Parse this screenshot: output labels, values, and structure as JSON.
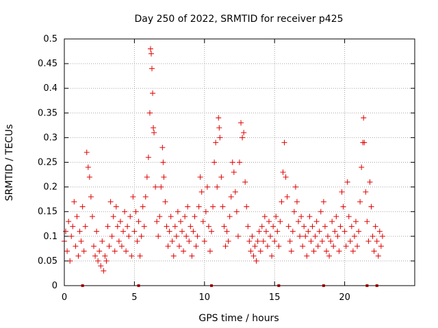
{
  "chart_data": {
    "type": "scatter",
    "title": "Day 250 of 2022, SRMTID for receiver p425",
    "xlabel": "GPS time / hours",
    "ylabel": "SRMTID / TECUs",
    "xlim": [
      0,
      25
    ],
    "ylim": [
      0,
      0.5
    ],
    "grid": true,
    "marker": "+",
    "color": "#e00000",
    "x_ticks": [
      {
        "value": 0,
        "label": "0"
      },
      {
        "value": 5,
        "label": "5"
      },
      {
        "value": 10,
        "label": "10"
      },
      {
        "value": 15,
        "label": "15"
      },
      {
        "value": 20,
        "label": "20"
      }
    ],
    "y_ticks": [
      {
        "value": 0,
        "label": "0"
      },
      {
        "value": 0.05,
        "label": "0.05"
      },
      {
        "value": 0.1,
        "label": "0.1"
      },
      {
        "value": 0.15,
        "label": "0.15"
      },
      {
        "value": 0.2,
        "label": "0.2"
      },
      {
        "value": 0.25,
        "label": "0.25"
      },
      {
        "value": 0.3,
        "label": "0.3"
      },
      {
        "value": 0.35,
        "label": "0.35"
      },
      {
        "value": 0.4,
        "label": "0.4"
      },
      {
        "value": 0.45,
        "label": "0.45"
      },
      {
        "value": 0.5,
        "label": "0.5"
      }
    ],
    "series": [
      {
        "name": "SRMTID",
        "points": [
          [
            0.0,
            0.09
          ],
          [
            0.1,
            0.11
          ],
          [
            0.2,
            0.07
          ],
          [
            0.3,
            0.13
          ],
          [
            0.4,
            0.05
          ],
          [
            0.5,
            0.1
          ],
          [
            0.6,
            0.12
          ],
          [
            0.7,
            0.17
          ],
          [
            0.8,
            0.08
          ],
          [
            0.9,
            0.14
          ],
          [
            1.0,
            0.06
          ],
          [
            1.1,
            0.11
          ],
          [
            1.2,
            0.09
          ],
          [
            1.3,
            0.16
          ],
          [
            1.4,
            0.07
          ],
          [
            1.5,
            0.12
          ],
          [
            1.6,
            0.27
          ],
          [
            1.7,
            0.24
          ],
          [
            1.8,
            0.22
          ],
          [
            1.9,
            0.18
          ],
          [
            2.0,
            0.14
          ],
          [
            2.1,
            0.08
          ],
          [
            2.2,
            0.06
          ],
          [
            2.3,
            0.11
          ],
          [
            2.4,
            0.05
          ],
          [
            2.5,
            0.07
          ],
          [
            2.6,
            0.04
          ],
          [
            2.7,
            0.09
          ],
          [
            2.8,
            0.03
          ],
          [
            2.9,
            0.06
          ],
          [
            3.0,
            0.05
          ],
          [
            3.1,
            0.12
          ],
          [
            3.2,
            0.08
          ],
          [
            3.3,
            0.17
          ],
          [
            3.4,
            0.1
          ],
          [
            3.5,
            0.14
          ],
          [
            3.6,
            0.07
          ],
          [
            3.7,
            0.16
          ],
          [
            3.8,
            0.12
          ],
          [
            3.9,
            0.09
          ],
          [
            4.0,
            0.13
          ],
          [
            4.1,
            0.08
          ],
          [
            4.2,
            0.11
          ],
          [
            4.3,
            0.15
          ],
          [
            4.4,
            0.07
          ],
          [
            4.5,
            0.12
          ],
          [
            4.6,
            0.1
          ],
          [
            4.7,
            0.14
          ],
          [
            4.8,
            0.06
          ],
          [
            4.9,
            0.18
          ],
          [
            5.0,
            0.11
          ],
          [
            5.1,
            0.15
          ],
          [
            5.2,
            0.09
          ],
          [
            5.3,
            0.13
          ],
          [
            5.4,
            0.06
          ],
          [
            5.5,
            0.1
          ],
          [
            5.6,
            0.16
          ],
          [
            5.7,
            0.12
          ],
          [
            5.8,
            0.18
          ],
          [
            5.9,
            0.22
          ],
          [
            6.0,
            0.26
          ],
          [
            6.1,
            0.35
          ],
          [
            6.15,
            0.48
          ],
          [
            6.2,
            0.47
          ],
          [
            6.25,
            0.44
          ],
          [
            6.3,
            0.39
          ],
          [
            6.35,
            0.32
          ],
          [
            6.4,
            0.31
          ],
          [
            6.5,
            0.2
          ],
          [
            6.6,
            0.13
          ],
          [
            6.7,
            0.1
          ],
          [
            6.8,
            0.14
          ],
          [
            6.9,
            0.2
          ],
          [
            7.0,
            0.28
          ],
          [
            7.05,
            0.25
          ],
          [
            7.1,
            0.22
          ],
          [
            7.2,
            0.17
          ],
          [
            7.3,
            0.12
          ],
          [
            7.4,
            0.08
          ],
          [
            7.5,
            0.11
          ],
          [
            7.6,
            0.14
          ],
          [
            7.7,
            0.09
          ],
          [
            7.8,
            0.06
          ],
          [
            7.9,
            0.12
          ],
          [
            8.0,
            0.1
          ],
          [
            8.1,
            0.15
          ],
          [
            8.2,
            0.08
          ],
          [
            8.3,
            0.13
          ],
          [
            8.4,
            0.11
          ],
          [
            8.5,
            0.07
          ],
          [
            8.6,
            0.14
          ],
          [
            8.7,
            0.1
          ],
          [
            8.8,
            0.16
          ],
          [
            8.9,
            0.09
          ],
          [
            9.0,
            0.12
          ],
          [
            9.1,
            0.06
          ],
          [
            9.2,
            0.11
          ],
          [
            9.3,
            0.14
          ],
          [
            9.4,
            0.08
          ],
          [
            9.5,
            0.1
          ],
          [
            9.6,
            0.16
          ],
          [
            9.7,
            0.22
          ],
          [
            9.8,
            0.19
          ],
          [
            9.9,
            0.13
          ],
          [
            10.0,
            0.09
          ],
          [
            10.1,
            0.15
          ],
          [
            10.2,
            0.2
          ],
          [
            10.3,
            0.12
          ],
          [
            10.4,
            0.07
          ],
          [
            10.5,
            0.11
          ],
          [
            10.6,
            0.16
          ],
          [
            10.7,
            0.25
          ],
          [
            10.8,
            0.29
          ],
          [
            10.9,
            0.2
          ],
          [
            11.0,
            0.34
          ],
          [
            11.05,
            0.32
          ],
          [
            11.1,
            0.3
          ],
          [
            11.2,
            0.22
          ],
          [
            11.3,
            0.16
          ],
          [
            11.4,
            0.12
          ],
          [
            11.5,
            0.08
          ],
          [
            11.6,
            0.11
          ],
          [
            11.7,
            0.09
          ],
          [
            11.8,
            0.14
          ],
          [
            11.9,
            0.18
          ],
          [
            12.0,
            0.25
          ],
          [
            12.1,
            0.23
          ],
          [
            12.2,
            0.19
          ],
          [
            12.3,
            0.15
          ],
          [
            12.4,
            0.1
          ],
          [
            12.5,
            0.25
          ],
          [
            12.6,
            0.33
          ],
          [
            12.7,
            0.3
          ],
          [
            12.8,
            0.31
          ],
          [
            12.9,
            0.21
          ],
          [
            13.0,
            0.16
          ],
          [
            13.1,
            0.12
          ],
          [
            13.2,
            0.09
          ],
          [
            13.3,
            0.07
          ],
          [
            13.4,
            0.1
          ],
          [
            13.5,
            0.06
          ],
          [
            13.6,
            0.08
          ],
          [
            13.7,
            0.05
          ],
          [
            13.8,
            0.09
          ],
          [
            13.9,
            0.11
          ],
          [
            14.0,
            0.07
          ],
          [
            14.1,
            0.12
          ],
          [
            14.2,
            0.09
          ],
          [
            14.3,
            0.14
          ],
          [
            14.4,
            0.11
          ],
          [
            14.5,
            0.08
          ],
          [
            14.6,
            0.13
          ],
          [
            14.7,
            0.1
          ],
          [
            14.8,
            0.06
          ],
          [
            14.9,
            0.12
          ],
          [
            15.0,
            0.09
          ],
          [
            15.1,
            0.14
          ],
          [
            15.2,
            0.11
          ],
          [
            15.3,
            0.08
          ],
          [
            15.4,
            0.13
          ],
          [
            15.5,
            0.17
          ],
          [
            15.6,
            0.23
          ],
          [
            15.7,
            0.29
          ],
          [
            15.8,
            0.22
          ],
          [
            15.9,
            0.18
          ],
          [
            16.0,
            0.12
          ],
          [
            16.1,
            0.09
          ],
          [
            16.2,
            0.07
          ],
          [
            16.3,
            0.11
          ],
          [
            16.4,
            0.15
          ],
          [
            16.5,
            0.2
          ],
          [
            16.6,
            0.17
          ],
          [
            16.7,
            0.13
          ],
          [
            16.8,
            0.1
          ],
          [
            16.9,
            0.14
          ],
          [
            17.0,
            0.08
          ],
          [
            17.1,
            0.12
          ],
          [
            17.2,
            0.1
          ],
          [
            17.3,
            0.06
          ],
          [
            17.4,
            0.11
          ],
          [
            17.5,
            0.14
          ],
          [
            17.6,
            0.09
          ],
          [
            17.7,
            0.12
          ],
          [
            17.8,
            0.07
          ],
          [
            17.9,
            0.1
          ],
          [
            18.0,
            0.13
          ],
          [
            18.1,
            0.08
          ],
          [
            18.2,
            0.11
          ],
          [
            18.3,
            0.15
          ],
          [
            18.4,
            0.09
          ],
          [
            18.5,
            0.17
          ],
          [
            18.6,
            0.12
          ],
          [
            18.7,
            0.07
          ],
          [
            18.8,
            0.1
          ],
          [
            18.9,
            0.06
          ],
          [
            19.0,
            0.09
          ],
          [
            19.1,
            0.13
          ],
          [
            19.2,
            0.08
          ],
          [
            19.3,
            0.11
          ],
          [
            19.4,
            0.14
          ],
          [
            19.5,
            0.1
          ],
          [
            19.6,
            0.07
          ],
          [
            19.7,
            0.12
          ],
          [
            19.8,
            0.19
          ],
          [
            19.9,
            0.16
          ],
          [
            20.0,
            0.11
          ],
          [
            20.1,
            0.08
          ],
          [
            20.2,
            0.21
          ],
          [
            20.3,
            0.14
          ],
          [
            20.4,
            0.09
          ],
          [
            20.5,
            0.12
          ],
          [
            20.6,
            0.07
          ],
          [
            20.7,
            0.1
          ],
          [
            20.8,
            0.13
          ],
          [
            20.9,
            0.08
          ],
          [
            21.0,
            0.11
          ],
          [
            21.1,
            0.17
          ],
          [
            21.2,
            0.24
          ],
          [
            21.3,
            0.29
          ],
          [
            21.35,
            0.34
          ],
          [
            21.4,
            0.29
          ],
          [
            21.5,
            0.19
          ],
          [
            21.6,
            0.13
          ],
          [
            21.7,
            0.09
          ],
          [
            21.8,
            0.21
          ],
          [
            21.9,
            0.16
          ],
          [
            22.0,
            0.1
          ],
          [
            22.1,
            0.07
          ],
          [
            22.2,
            0.12
          ],
          [
            22.3,
            0.09
          ],
          [
            22.4,
            0.06
          ],
          [
            22.5,
            0.11
          ],
          [
            22.6,
            0.08
          ],
          [
            22.7,
            0.1
          ]
        ]
      }
    ],
    "baseline_markers": [
      1.3,
      5.3,
      10.5,
      15.3,
      18.5,
      21.6,
      22.3
    ]
  }
}
